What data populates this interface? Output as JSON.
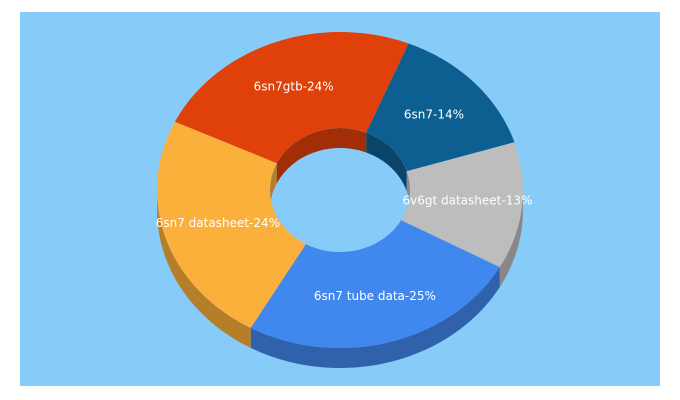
{
  "chart_data": {
    "type": "pie",
    "donut": true,
    "value_labels": [
      "6sn7-14%",
      "6v6gt datasheet-13%",
      "6sn7 tube data-25%",
      "6sn7 datasheet-24%",
      "6sn7gtb-24%"
    ],
    "values": [
      14,
      13,
      25,
      24,
      24
    ],
    "colors": [
      "#0e5f91",
      "#bdbdbd",
      "#4188ee",
      "#fbb03b",
      "#e0400a"
    ]
  }
}
